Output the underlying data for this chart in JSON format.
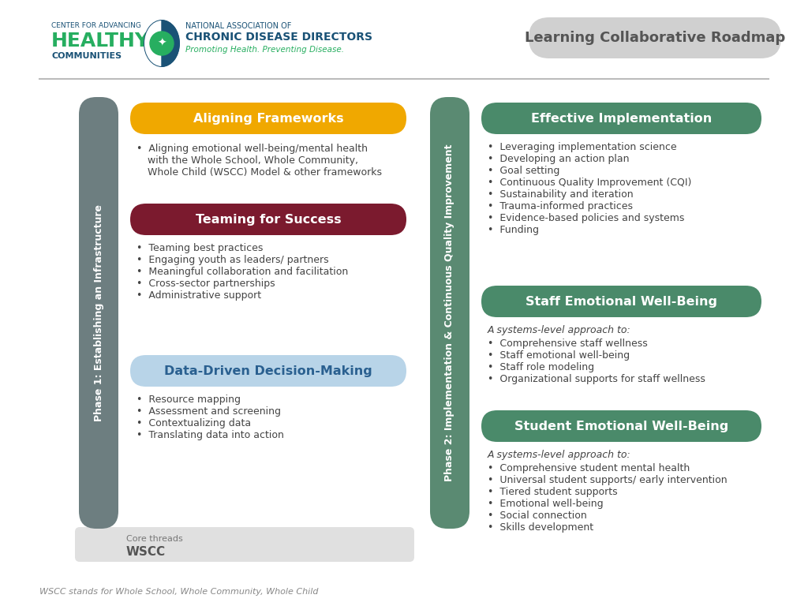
{
  "title": "Learning Collaborative Roadmap",
  "title_bg": "#d0d0d0",
  "title_color": "#555555",
  "separator_color": "#bbbbbb",
  "phase1_label": "Phase 1: Establishing an Infrastructure",
  "phase1_bar_color": "#6d7e80",
  "phase2_label": "Phase 2: Implementation & Continuous Quality Improvement",
  "phase2_bar_color": "#5a8a72",
  "section1_title": "Aligning Frameworks",
  "section1_color": "#f0a800",
  "section1_text_color": "#ffffff",
  "section1_bullets": [
    "Aligning emotional well-being/mental health",
    "with the Whole School, Whole Community,",
    "Whole Child (WSCC) Model & other frameworks"
  ],
  "section2_title": "Teaming for Success",
  "section2_color": "#7b1a2e",
  "section2_text_color": "#ffffff",
  "section2_bullets": [
    "Teaming best practices",
    "Engaging youth as leaders/ partners",
    "Meaningful collaboration and facilitation",
    "Cross-sector partnerships",
    "Administrative support"
  ],
  "section3_title": "Data-Driven Decision-Making",
  "section3_color": "#b8d4e8",
  "section3_text_color": "#2a6090",
  "section3_bullets": [
    "Resource mapping",
    "Assessment and screening",
    "Contextualizing data",
    "Translating data into action"
  ],
  "section4_title": "Effective Implementation",
  "section4_color": "#4a8a6a",
  "section4_text_color": "#ffffff",
  "section4_bullets": [
    "Leveraging implementation science",
    "Developing an action plan",
    "Goal setting",
    "Continuous Quality Improvement (CQI)",
    "Sustainability and iteration",
    "Trauma-informed practices",
    "Evidence-based policies and systems",
    "Funding"
  ],
  "section5_title": "Staff Emotional Well-Being",
  "section5_color": "#4a8a6a",
  "section5_text_color": "#ffffff",
  "section5_intro": "A systems-level approach to:",
  "section5_bullets": [
    "Comprehensive staff wellness",
    "Staff emotional well-being",
    "Staff role modeling",
    "Organizational supports for staff wellness"
  ],
  "section6_title": "Student Emotional Well-Being",
  "section6_color": "#4a8a6a",
  "section6_text_color": "#ffffff",
  "section6_intro": "A systems-level approach to:",
  "section6_bullets": [
    "Comprehensive student mental health",
    "Universal student supports/ early intervention",
    "Tiered student supports",
    "Emotional well-being",
    "Social connection",
    "Skills development"
  ],
  "core_threads_label": "Core threads",
  "wscc_label": "WSCC",
  "footer_text": "WSCC stands for Whole School, Whole Community, Whole Child",
  "bg_color": "#ffffff",
  "bullet_color": "#444444",
  "bullet_char": "•"
}
